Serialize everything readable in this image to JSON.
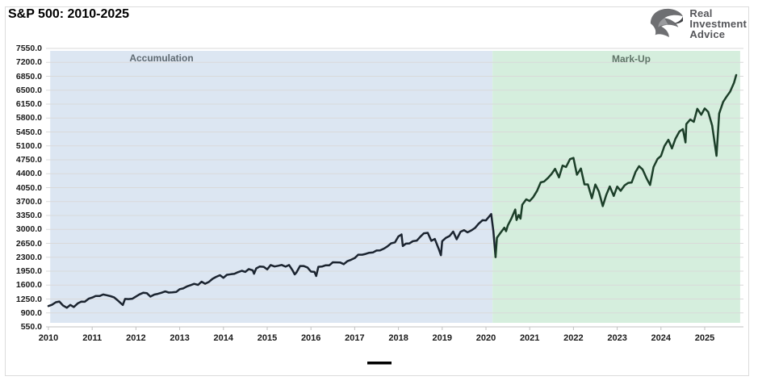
{
  "header": {
    "title": "S&P 500: 2010-2025"
  },
  "logo": {
    "icon": "eagle-icon",
    "line1": "Real",
    "line2": "Investment",
    "line3": "Advice"
  },
  "colors": {
    "background": "#ffffff",
    "gridline": "#d9d9d9",
    "axis": "#c0c0c0",
    "chart_border": "#dcdcdc",
    "accumulation_band": "#dce6f2",
    "markup_band": "#d5eedd",
    "accumulation_line": "#1b2430",
    "markup_line": "#1c3f29",
    "legend_marker": "#000000"
  },
  "legend": {
    "marker": "black-line-sample",
    "label": ""
  },
  "chart_data": {
    "type": "line",
    "title": "S&P 500: 2010-2025",
    "xlabel": "",
    "ylabel": "",
    "grid": true,
    "legend_position": "bottom-center",
    "ylim": [
      550,
      7550
    ],
    "y_tick_step": 350,
    "y_tick_labels": [
      "7550.0",
      "7200.0",
      "6850.0",
      "6500.0",
      "6150.0",
      "5800.0",
      "5450.0",
      "5100.0",
      "4750.0",
      "4400.0",
      "4050.0",
      "3700.0",
      "3350.0",
      "3000.0",
      "2650.0",
      "2300.0",
      "1950.0",
      "1600.0",
      "1250.0",
      "900.0",
      "550.0"
    ],
    "x_tick_labels": [
      "2010",
      "2011",
      "2012",
      "2013",
      "2014",
      "2015",
      "2016",
      "2017",
      "2018",
      "2019",
      "2020",
      "2021",
      "2022",
      "2023",
      "2024",
      "2025"
    ],
    "regions": [
      {
        "label": "Accumulation",
        "x_start": 2010.04,
        "x_end": 2020.15,
        "fill": "#dce6f2",
        "label_color": "#5f6a72"
      },
      {
        "label": "Mark-Up",
        "x_start": 2020.15,
        "x_end": 2025.81,
        "fill": "#d5eedd",
        "label_color": "#607468"
      }
    ],
    "series": [
      {
        "name": "accumulation-phase",
        "color": "#1b2430",
        "points": [
          [
            2010.0,
            1074
          ],
          [
            2010.08,
            1104
          ],
          [
            2010.17,
            1169
          ],
          [
            2010.25,
            1187
          ],
          [
            2010.33,
            1089
          ],
          [
            2010.42,
            1031
          ],
          [
            2010.5,
            1102
          ],
          [
            2010.58,
            1049
          ],
          [
            2010.67,
            1141
          ],
          [
            2010.75,
            1183
          ],
          [
            2010.83,
            1181
          ],
          [
            2010.92,
            1258
          ],
          [
            2011.0,
            1286
          ],
          [
            2011.08,
            1327
          ],
          [
            2011.17,
            1326
          ],
          [
            2011.25,
            1364
          ],
          [
            2011.33,
            1345
          ],
          [
            2011.42,
            1321
          ],
          [
            2011.5,
            1292
          ],
          [
            2011.58,
            1219
          ],
          [
            2011.67,
            1131
          ],
          [
            2011.7,
            1099
          ],
          [
            2011.75,
            1253
          ],
          [
            2011.83,
            1247
          ],
          [
            2011.92,
            1258
          ],
          [
            2012.0,
            1312
          ],
          [
            2012.08,
            1366
          ],
          [
            2012.17,
            1408
          ],
          [
            2012.25,
            1398
          ],
          [
            2012.33,
            1310
          ],
          [
            2012.42,
            1362
          ],
          [
            2012.5,
            1379
          ],
          [
            2012.58,
            1407
          ],
          [
            2012.67,
            1441
          ],
          [
            2012.75,
            1412
          ],
          [
            2012.83,
            1416
          ],
          [
            2012.92,
            1426
          ],
          [
            2013.0,
            1498
          ],
          [
            2013.08,
            1515
          ],
          [
            2013.17,
            1569
          ],
          [
            2013.25,
            1598
          ],
          [
            2013.33,
            1631
          ],
          [
            2013.42,
            1606
          ],
          [
            2013.5,
            1686
          ],
          [
            2013.58,
            1633
          ],
          [
            2013.67,
            1682
          ],
          [
            2013.75,
            1757
          ],
          [
            2013.83,
            1806
          ],
          [
            2013.92,
            1848
          ],
          [
            2014.0,
            1783
          ],
          [
            2014.08,
            1859
          ],
          [
            2014.17,
            1872
          ],
          [
            2014.25,
            1884
          ],
          [
            2014.33,
            1924
          ],
          [
            2014.42,
            1960
          ],
          [
            2014.5,
            1931
          ],
          [
            2014.58,
            2003
          ],
          [
            2014.67,
            1972
          ],
          [
            2014.7,
            1886
          ],
          [
            2014.75,
            2018
          ],
          [
            2014.83,
            2068
          ],
          [
            2014.92,
            2059
          ],
          [
            2015.0,
            1995
          ],
          [
            2015.08,
            2105
          ],
          [
            2015.17,
            2068
          ],
          [
            2015.25,
            2086
          ],
          [
            2015.33,
            2107
          ],
          [
            2015.42,
            2063
          ],
          [
            2015.5,
            2104
          ],
          [
            2015.58,
            1972
          ],
          [
            2015.63,
            1868
          ],
          [
            2015.67,
            1920
          ],
          [
            2015.75,
            2079
          ],
          [
            2015.83,
            2080
          ],
          [
            2015.92,
            2044
          ],
          [
            2016.0,
            1940
          ],
          [
            2016.08,
            1932
          ],
          [
            2016.12,
            1829
          ],
          [
            2016.17,
            2060
          ],
          [
            2016.25,
            2065
          ],
          [
            2016.33,
            2097
          ],
          [
            2016.42,
            2099
          ],
          [
            2016.5,
            2174
          ],
          [
            2016.58,
            2171
          ],
          [
            2016.67,
            2168
          ],
          [
            2016.75,
            2126
          ],
          [
            2016.83,
            2199
          ],
          [
            2016.92,
            2239
          ],
          [
            2017.0,
            2279
          ],
          [
            2017.08,
            2364
          ],
          [
            2017.17,
            2363
          ],
          [
            2017.25,
            2384
          ],
          [
            2017.33,
            2412
          ],
          [
            2017.42,
            2423
          ],
          [
            2017.5,
            2470
          ],
          [
            2017.58,
            2472
          ],
          [
            2017.67,
            2519
          ],
          [
            2017.75,
            2575
          ],
          [
            2017.83,
            2648
          ],
          [
            2017.92,
            2674
          ],
          [
            2018.0,
            2824
          ],
          [
            2018.07,
            2873
          ],
          [
            2018.1,
            2581
          ],
          [
            2018.17,
            2641
          ],
          [
            2018.25,
            2648
          ],
          [
            2018.33,
            2705
          ],
          [
            2018.42,
            2718
          ],
          [
            2018.5,
            2816
          ],
          [
            2018.58,
            2902
          ],
          [
            2018.67,
            2914
          ],
          [
            2018.75,
            2712
          ],
          [
            2018.83,
            2760
          ],
          [
            2018.92,
            2507
          ],
          [
            2018.97,
            2351
          ],
          [
            2019.0,
            2704
          ],
          [
            2019.08,
            2784
          ],
          [
            2019.17,
            2834
          ],
          [
            2019.25,
            2946
          ],
          [
            2019.33,
            2752
          ],
          [
            2019.42,
            2942
          ],
          [
            2019.5,
            2980
          ],
          [
            2019.58,
            2926
          ],
          [
            2019.67,
            2977
          ],
          [
            2019.75,
            3038
          ],
          [
            2019.83,
            3141
          ],
          [
            2019.92,
            3231
          ],
          [
            2020.0,
            3226
          ],
          [
            2020.12,
            3386
          ],
          [
            2020.17,
            2954
          ],
          [
            2020.22,
            2305
          ]
        ]
      },
      {
        "name": "markup-phase",
        "color": "#1c3f29",
        "points": [
          [
            2020.22,
            2305
          ],
          [
            2020.25,
            2790
          ],
          [
            2020.33,
            2912
          ],
          [
            2020.42,
            3044
          ],
          [
            2020.46,
            2955
          ],
          [
            2020.5,
            3100
          ],
          [
            2020.58,
            3271
          ],
          [
            2020.63,
            3397
          ],
          [
            2020.67,
            3500
          ],
          [
            2020.7,
            3237
          ],
          [
            2020.75,
            3363
          ],
          [
            2020.79,
            3270
          ],
          [
            2020.83,
            3622
          ],
          [
            2020.92,
            3756
          ],
          [
            2021.0,
            3714
          ],
          [
            2021.08,
            3811
          ],
          [
            2021.17,
            3973
          ],
          [
            2021.25,
            4181
          ],
          [
            2021.33,
            4204
          ],
          [
            2021.42,
            4298
          ],
          [
            2021.5,
            4395
          ],
          [
            2021.58,
            4523
          ],
          [
            2021.67,
            4308
          ],
          [
            2021.75,
            4605
          ],
          [
            2021.83,
            4567
          ],
          [
            2021.92,
            4766
          ],
          [
            2022.0,
            4797
          ],
          [
            2022.08,
            4374
          ],
          [
            2022.17,
            4530
          ],
          [
            2022.25,
            4132
          ],
          [
            2022.33,
            4132
          ],
          [
            2022.42,
            3785
          ],
          [
            2022.5,
            4130
          ],
          [
            2022.58,
            3955
          ],
          [
            2022.67,
            3586
          ],
          [
            2022.75,
            3872
          ],
          [
            2022.83,
            4080
          ],
          [
            2022.92,
            3840
          ],
          [
            2023.0,
            4077
          ],
          [
            2023.08,
            3970
          ],
          [
            2023.17,
            4109
          ],
          [
            2023.25,
            4169
          ],
          [
            2023.33,
            4180
          ],
          [
            2023.42,
            4450
          ],
          [
            2023.5,
            4589
          ],
          [
            2023.58,
            4508
          ],
          [
            2023.67,
            4288
          ],
          [
            2023.75,
            4117
          ],
          [
            2023.83,
            4568
          ],
          [
            2023.92,
            4770
          ],
          [
            2024.0,
            4846
          ],
          [
            2024.08,
            5096
          ],
          [
            2024.17,
            5254
          ],
          [
            2024.25,
            5036
          ],
          [
            2024.33,
            5278
          ],
          [
            2024.42,
            5460
          ],
          [
            2024.5,
            5522
          ],
          [
            2024.56,
            5186
          ],
          [
            2024.58,
            5648
          ],
          [
            2024.67,
            5762
          ],
          [
            2024.75,
            5705
          ],
          [
            2024.83,
            6032
          ],
          [
            2024.92,
            5882
          ],
          [
            2025.0,
            6041
          ],
          [
            2025.08,
            5955
          ],
          [
            2025.17,
            5612
          ],
          [
            2025.27,
            4850
          ],
          [
            2025.33,
            5912
          ],
          [
            2025.42,
            6205
          ],
          [
            2025.5,
            6339
          ],
          [
            2025.58,
            6460
          ],
          [
            2025.67,
            6688
          ],
          [
            2025.72,
            6880
          ]
        ]
      }
    ]
  }
}
